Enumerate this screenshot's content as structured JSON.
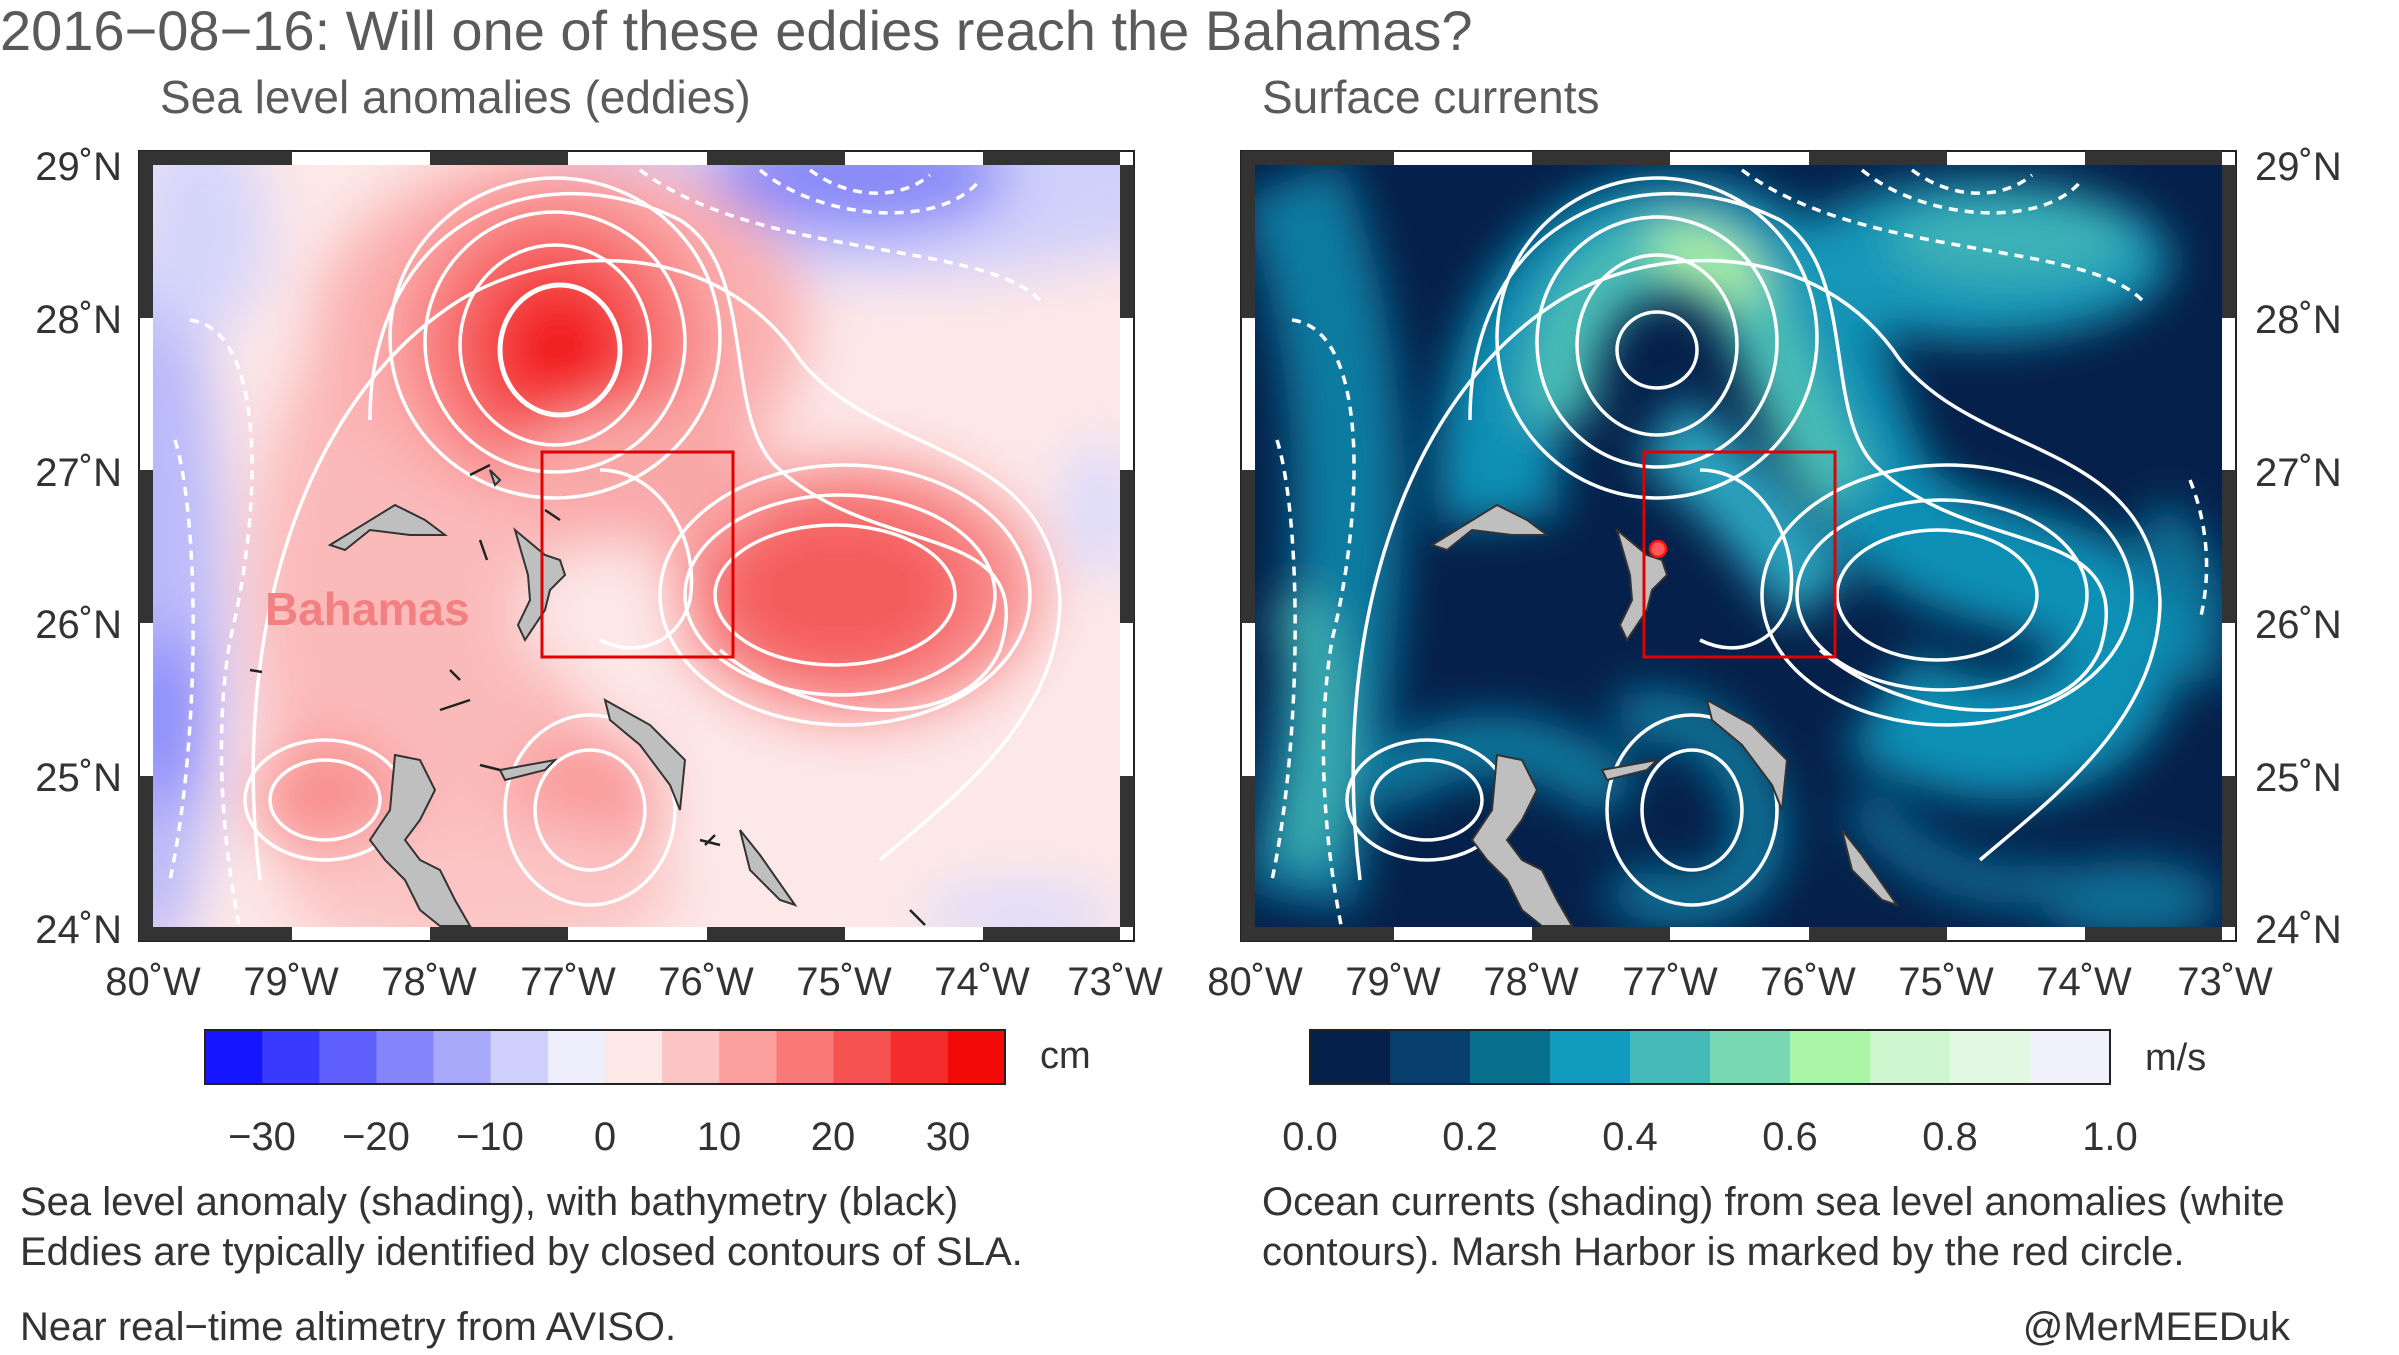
{
  "title": "2016−08−16: Will one of these eddies reach the Bahamas?",
  "left_panel": {
    "subtitle": "Sea level anomalies (eddies)",
    "region_label": "Bahamas",
    "colorbar": {
      "unit": "cm",
      "ticks": [
        "−30",
        "−20",
        "−10",
        "0",
        "10",
        "20",
        "30"
      ],
      "colors": [
        "#1515ff",
        "#3a3aff",
        "#5f5ffd",
        "#8484fb",
        "#a9a9fb",
        "#cfcffc",
        "#eeeefd",
        "#fde8e8",
        "#fcc4c4",
        "#fa9e9e",
        "#f97878",
        "#f75252",
        "#f52c2c",
        "#f50a0a"
      ]
    },
    "caption_line1": "Sea level anomaly (shading), with bathymetry (black)",
    "caption_line2": "Eddies are typically identified by closed contours of SLA."
  },
  "right_panel": {
    "subtitle": "Surface currents",
    "colorbar": {
      "unit": "m/s",
      "ticks": [
        "0.0",
        "0.2",
        "0.4",
        "0.6",
        "0.8",
        "1.0"
      ],
      "colors": [
        "#05204a",
        "#063f6e",
        "#07708f",
        "#119cbf",
        "#44b9b8",
        "#79d8b4",
        "#abf5a6",
        "#cff7cf",
        "#e3f8e3",
        "#f1f1fc"
      ]
    },
    "caption_line1": "Ocean currents (shading) from sea level anomalies (white",
    "caption_line2": "contours). Marsh Harbor is marked by the red circle."
  },
  "map": {
    "lat_labels": [
      "29˚N",
      "28˚N",
      "27˚N",
      "26˚N",
      "25˚N",
      "24˚N"
    ],
    "lon_labels": [
      "80˚W",
      "79˚W",
      "78˚W",
      "77˚W",
      "76˚W",
      "75˚W",
      "74˚W",
      "73˚W"
    ],
    "lat_range": [
      24,
      29
    ],
    "lon_range": [
      -80,
      -73
    ],
    "highlight_box": {
      "lon": [
        -76.45,
        -75.05
      ],
      "lat": [
        25.8,
        27.15
      ]
    },
    "marsh_harbor": {
      "lon": -77.07,
      "lat": 26.54,
      "color": "#ff2020"
    },
    "eddies": [
      {
        "name": "cyclonic-north",
        "lon": -75.8,
        "lat": 29.05,
        "sla_cm": -20
      },
      {
        "name": "anticyclonic-north",
        "lon": -77.15,
        "lat": 27.85,
        "sla_cm": 30
      },
      {
        "name": "anticyclonic-east",
        "lon": -74.75,
        "lat": 26.15,
        "sla_cm": 24
      },
      {
        "name": "anticyclonic-south-west",
        "lon": -78.5,
        "lat": 24.8,
        "sla_cm": 12
      },
      {
        "name": "anticyclonic-south",
        "lon": -76.6,
        "lat": 24.9,
        "sla_cm": 13
      }
    ]
  },
  "footer": {
    "source": "Near real−time altimetry from AVISO.",
    "credit": "@MerMEEDuk"
  }
}
